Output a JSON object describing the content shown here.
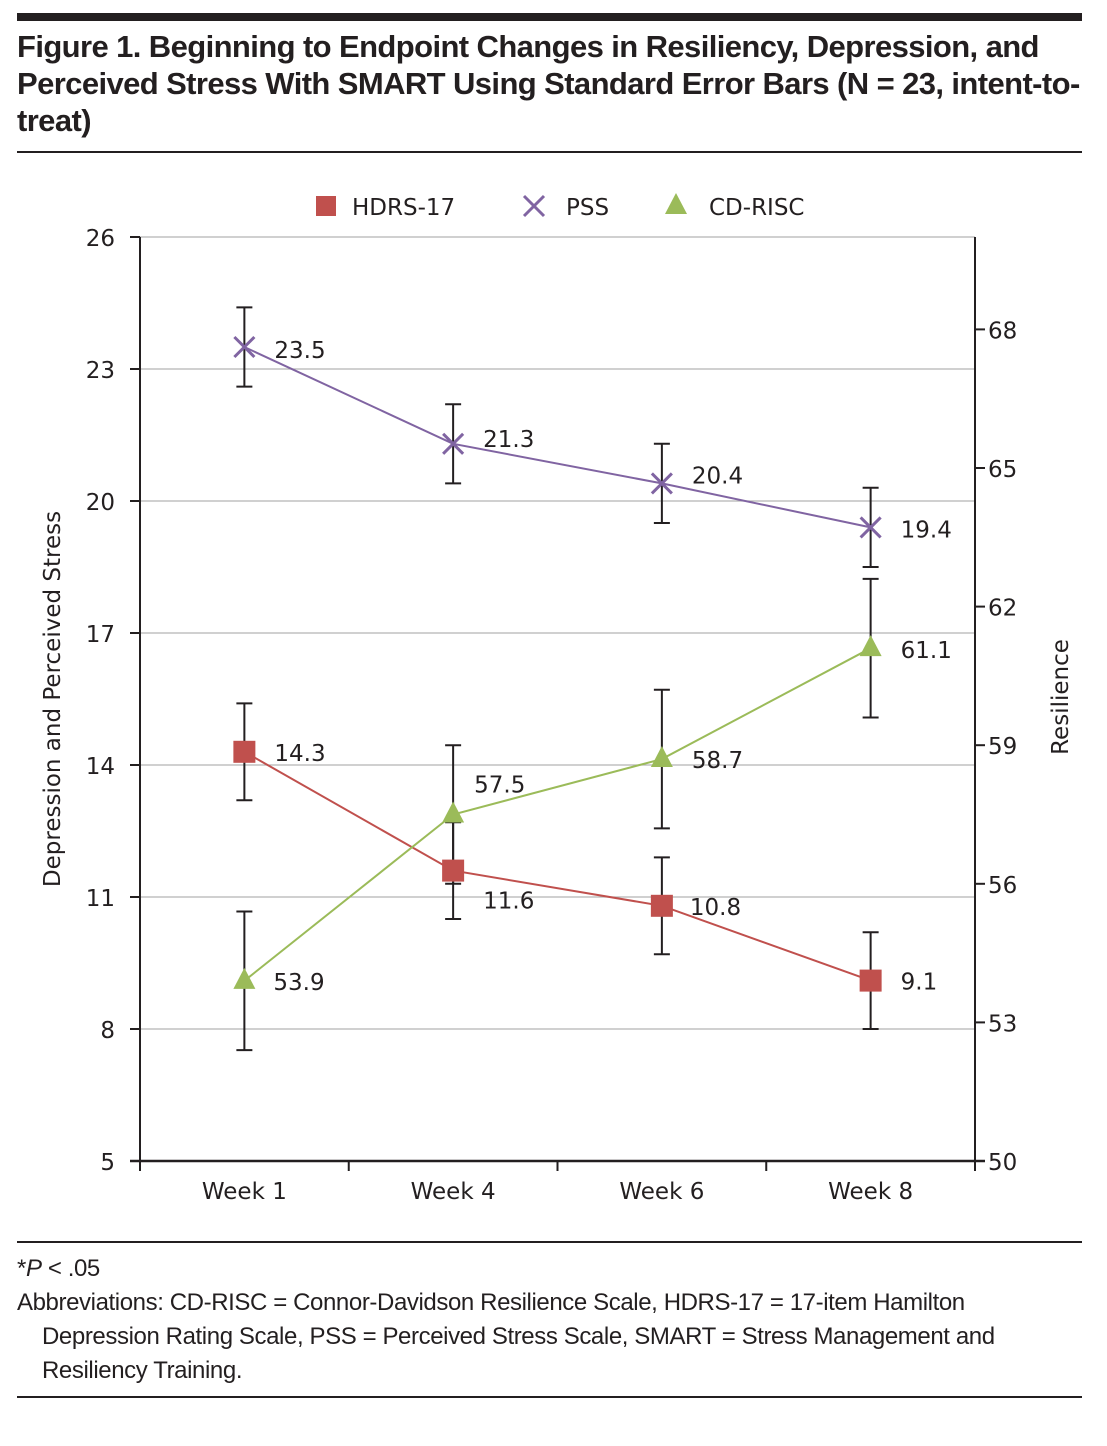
{
  "figure": {
    "title": "Figure 1. Beginning to Endpoint Changes in Resiliency, Depression, and Perceived Stress With SMART Using Standard Error Bars (N = 23, intent-to-treat)",
    "footnote_sig_prefix": "*",
    "footnote_sig_italic": "P",
    "footnote_sig_rest": " < .05",
    "abbreviations": "Abbreviations: CD-RISC = Connor-Davidson Resilience Scale, HDRS-17 = 17-item Hamilton Depression Rating Scale, PSS = Perceived Stress Scale, SMART = Stress Management and Resiliency Training."
  },
  "colors": {
    "hdrs": "#c0504d",
    "pss": "#8064a2",
    "cdrisc": "#9bbb59",
    "axis": "#231f20",
    "grid": "#b3b3b3"
  },
  "chart_data": {
    "type": "line",
    "title": "",
    "categories": [
      "Week 1",
      "Week 4",
      "Week 6",
      "Week 8"
    ],
    "xlabel": "",
    "ylabel": "Depression and Perceived Stress",
    "y2label": "Resilience",
    "ylim": [
      5,
      26
    ],
    "yticks": [
      5,
      8,
      11,
      14,
      17,
      20,
      23,
      26
    ],
    "y2lim": [
      50,
      70
    ],
    "y2ticks": [
      50,
      53,
      56,
      59,
      62,
      65,
      68
    ],
    "grid": true,
    "legend_position": "top-center",
    "series": [
      {
        "name": "HDRS-17",
        "axis": "left",
        "marker": "square",
        "color_key": "hdrs",
        "values": [
          14.3,
          11.6,
          10.8,
          9.1
        ],
        "labels": [
          "14.3",
          "11.6",
          "10.8",
          "9.1"
        ],
        "error": [
          1.1,
          1.1,
          1.1,
          1.1
        ]
      },
      {
        "name": "PSS",
        "axis": "left",
        "marker": "x",
        "color_key": "pss",
        "values": [
          23.5,
          21.3,
          20.4,
          19.4
        ],
        "labels": [
          "23.5",
          "21.3",
          "20.4",
          "19.4"
        ],
        "error": [
          0.9,
          0.9,
          0.9,
          0.9
        ]
      },
      {
        "name": "CD-RISC",
        "axis": "right",
        "marker": "triangle",
        "color_key": "cdrisc",
        "values": [
          53.9,
          57.5,
          58.7,
          61.1
        ],
        "labels": [
          "53.9",
          "57.5",
          "58.7",
          "61.1"
        ],
        "error": [
          1.5,
          1.5,
          1.5,
          1.5
        ]
      }
    ]
  }
}
